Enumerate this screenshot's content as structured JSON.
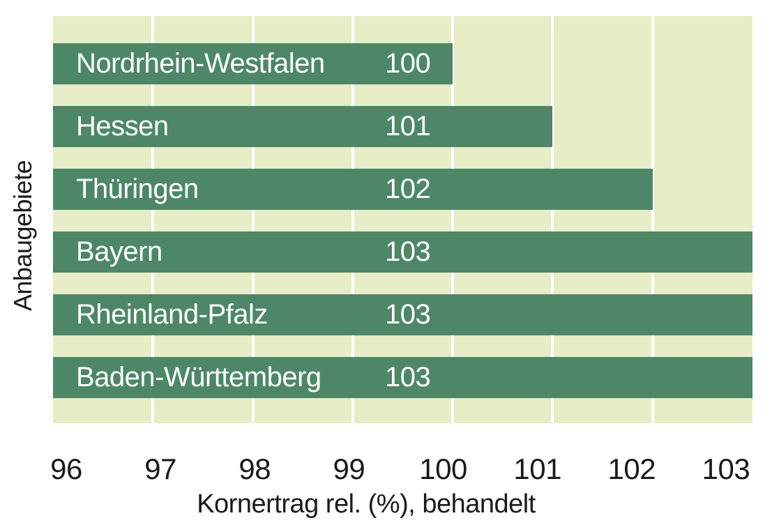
{
  "chart_data": {
    "type": "bar",
    "orientation": "horizontal",
    "title": "",
    "xlabel": "Kornertrag rel. (%), behandelt",
    "ylabel": "Anbaugebiete",
    "xlim": [
      96,
      103
    ],
    "xticks": [
      96,
      97,
      98,
      99,
      100,
      101,
      102,
      103
    ],
    "grid": "vertical-white-gridlines-per-unit",
    "legend": "none",
    "categories": [
      "Nordrhein-Westfalen",
      "Hessen",
      "Thüringen",
      "Bayern",
      "Rheinland-Pfalz",
      "Baden-Württemberg"
    ],
    "values": [
      100,
      101,
      102,
      103,
      103,
      103
    ],
    "bar_value_labels": [
      "100",
      "101",
      "102",
      "103",
      "103",
      "103"
    ],
    "colors": {
      "bar": "#4d8768",
      "plot_background": "#e7edc6",
      "gridline": "#ffffff",
      "bar_text": "#ffffff",
      "axis_text": "#1a1a1a",
      "page_background": "#ffffff"
    }
  }
}
